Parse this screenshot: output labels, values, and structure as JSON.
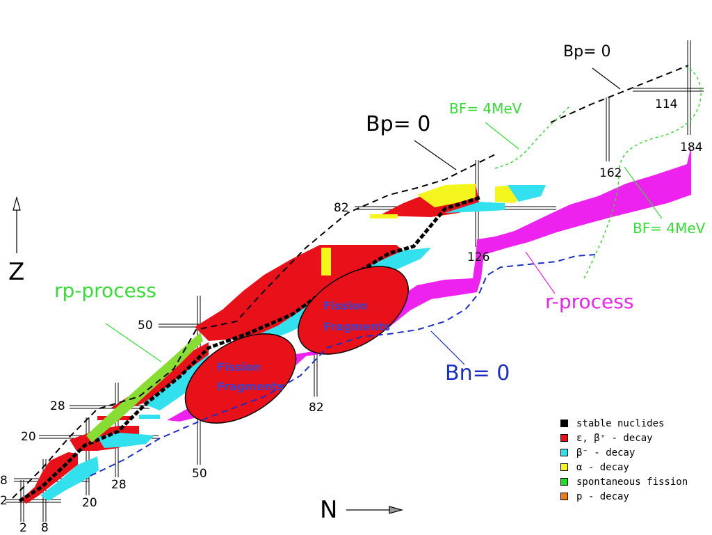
{
  "axes": {
    "z": "Z",
    "n": "N"
  },
  "magic": {
    "p2": "2",
    "p8": "8",
    "p20": "20",
    "p28": "28",
    "p50": "50",
    "p82": "82",
    "n2": "2",
    "n8": "8",
    "n20": "20",
    "n28": "28",
    "n50": "50",
    "n82": "82",
    "n126": "126",
    "n162": "162",
    "n184": "184",
    "p114": "114"
  },
  "labels": {
    "rp_process": "rp-process",
    "r_process": "r-process",
    "bp_main": "Bp= 0",
    "bp_top": "Bp= 0",
    "bn": "Bn= 0",
    "bf_top": "BF= 4MeV",
    "bf_right": "BF= 4MeV",
    "fission1": "Fission Fragments",
    "fission2": "Fission Fragments"
  },
  "legend": [
    {
      "label": "stable nuclides",
      "color": "#000000"
    },
    {
      "label": "ε, β⁺ - decay",
      "color": "#e8111a"
    },
    {
      "label": "β⁻ - decay",
      "color": "#33e0ee"
    },
    {
      "label": "α - decay",
      "color": "#f4f51c"
    },
    {
      "label": "spontaneous fission",
      "color": "#22dd22"
    },
    {
      "label": "p - decay",
      "color": "#f07b10"
    }
  ],
  "colors": {
    "red": "#e8111a",
    "cyan": "#33e0ee",
    "yellow": "#f4f51c",
    "green": "#88dd33",
    "magenta": "#ee22ee",
    "blue": "#1a2ec8",
    "line_green": "#33dd33"
  }
}
